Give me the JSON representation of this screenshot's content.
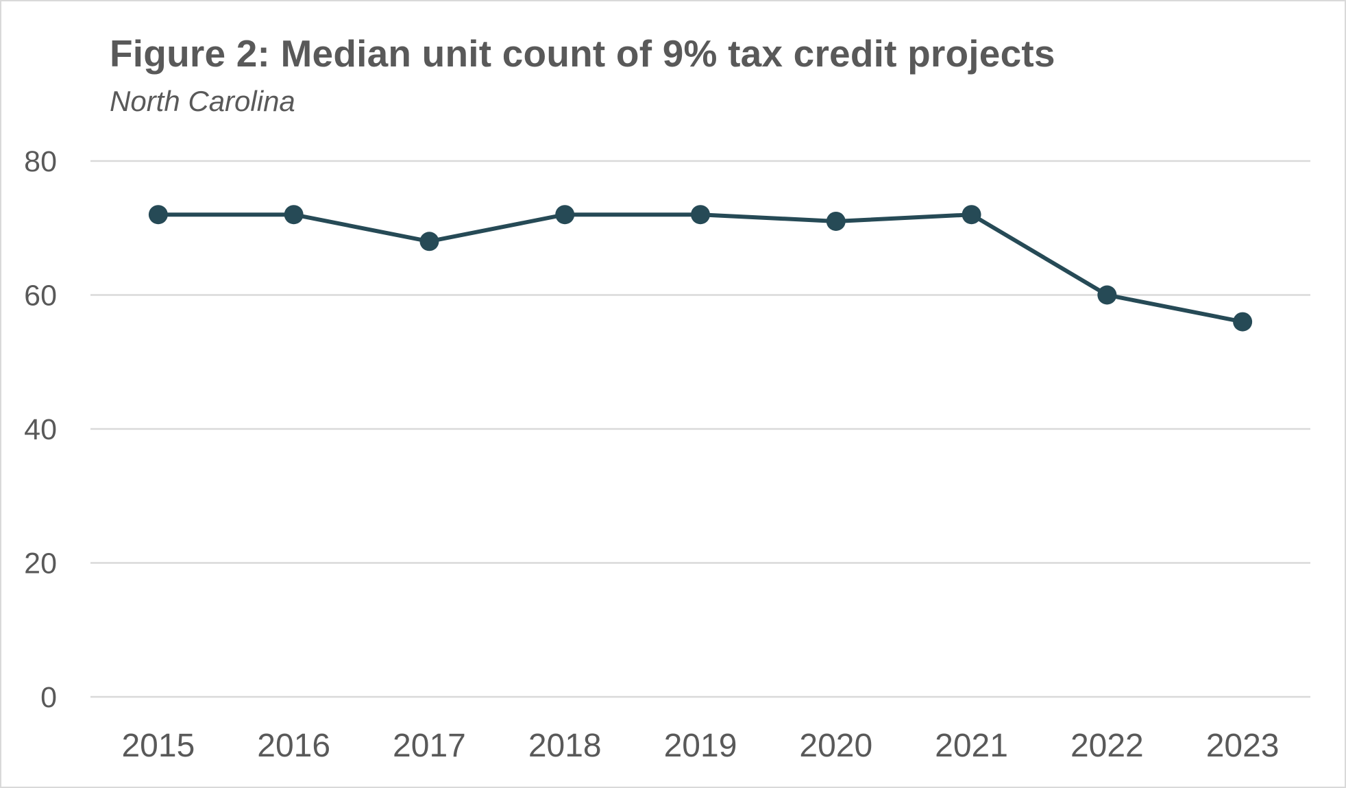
{
  "chart_data": {
    "type": "line",
    "title": "Figure 2: Median unit count of 9% tax credit projects",
    "subtitle": "North Carolina",
    "xlabel": "",
    "ylabel": "",
    "categories": [
      "2015",
      "2016",
      "2017",
      "2018",
      "2019",
      "2020",
      "2021",
      "2022",
      "2023"
    ],
    "series": [
      {
        "name": "Median unit count",
        "values": [
          72,
          72,
          68,
          72,
          72,
          71,
          72,
          60,
          56
        ],
        "color": "#264a56",
        "markers": true
      }
    ],
    "ylim": [
      0,
      80
    ],
    "yticks": [
      "0",
      "20",
      "40",
      "60",
      "80"
    ],
    "grid": true,
    "legend": "none"
  },
  "colors": {
    "text": "#595959",
    "gridline": "#d9d9d9",
    "border": "#d9d9d9"
  }
}
